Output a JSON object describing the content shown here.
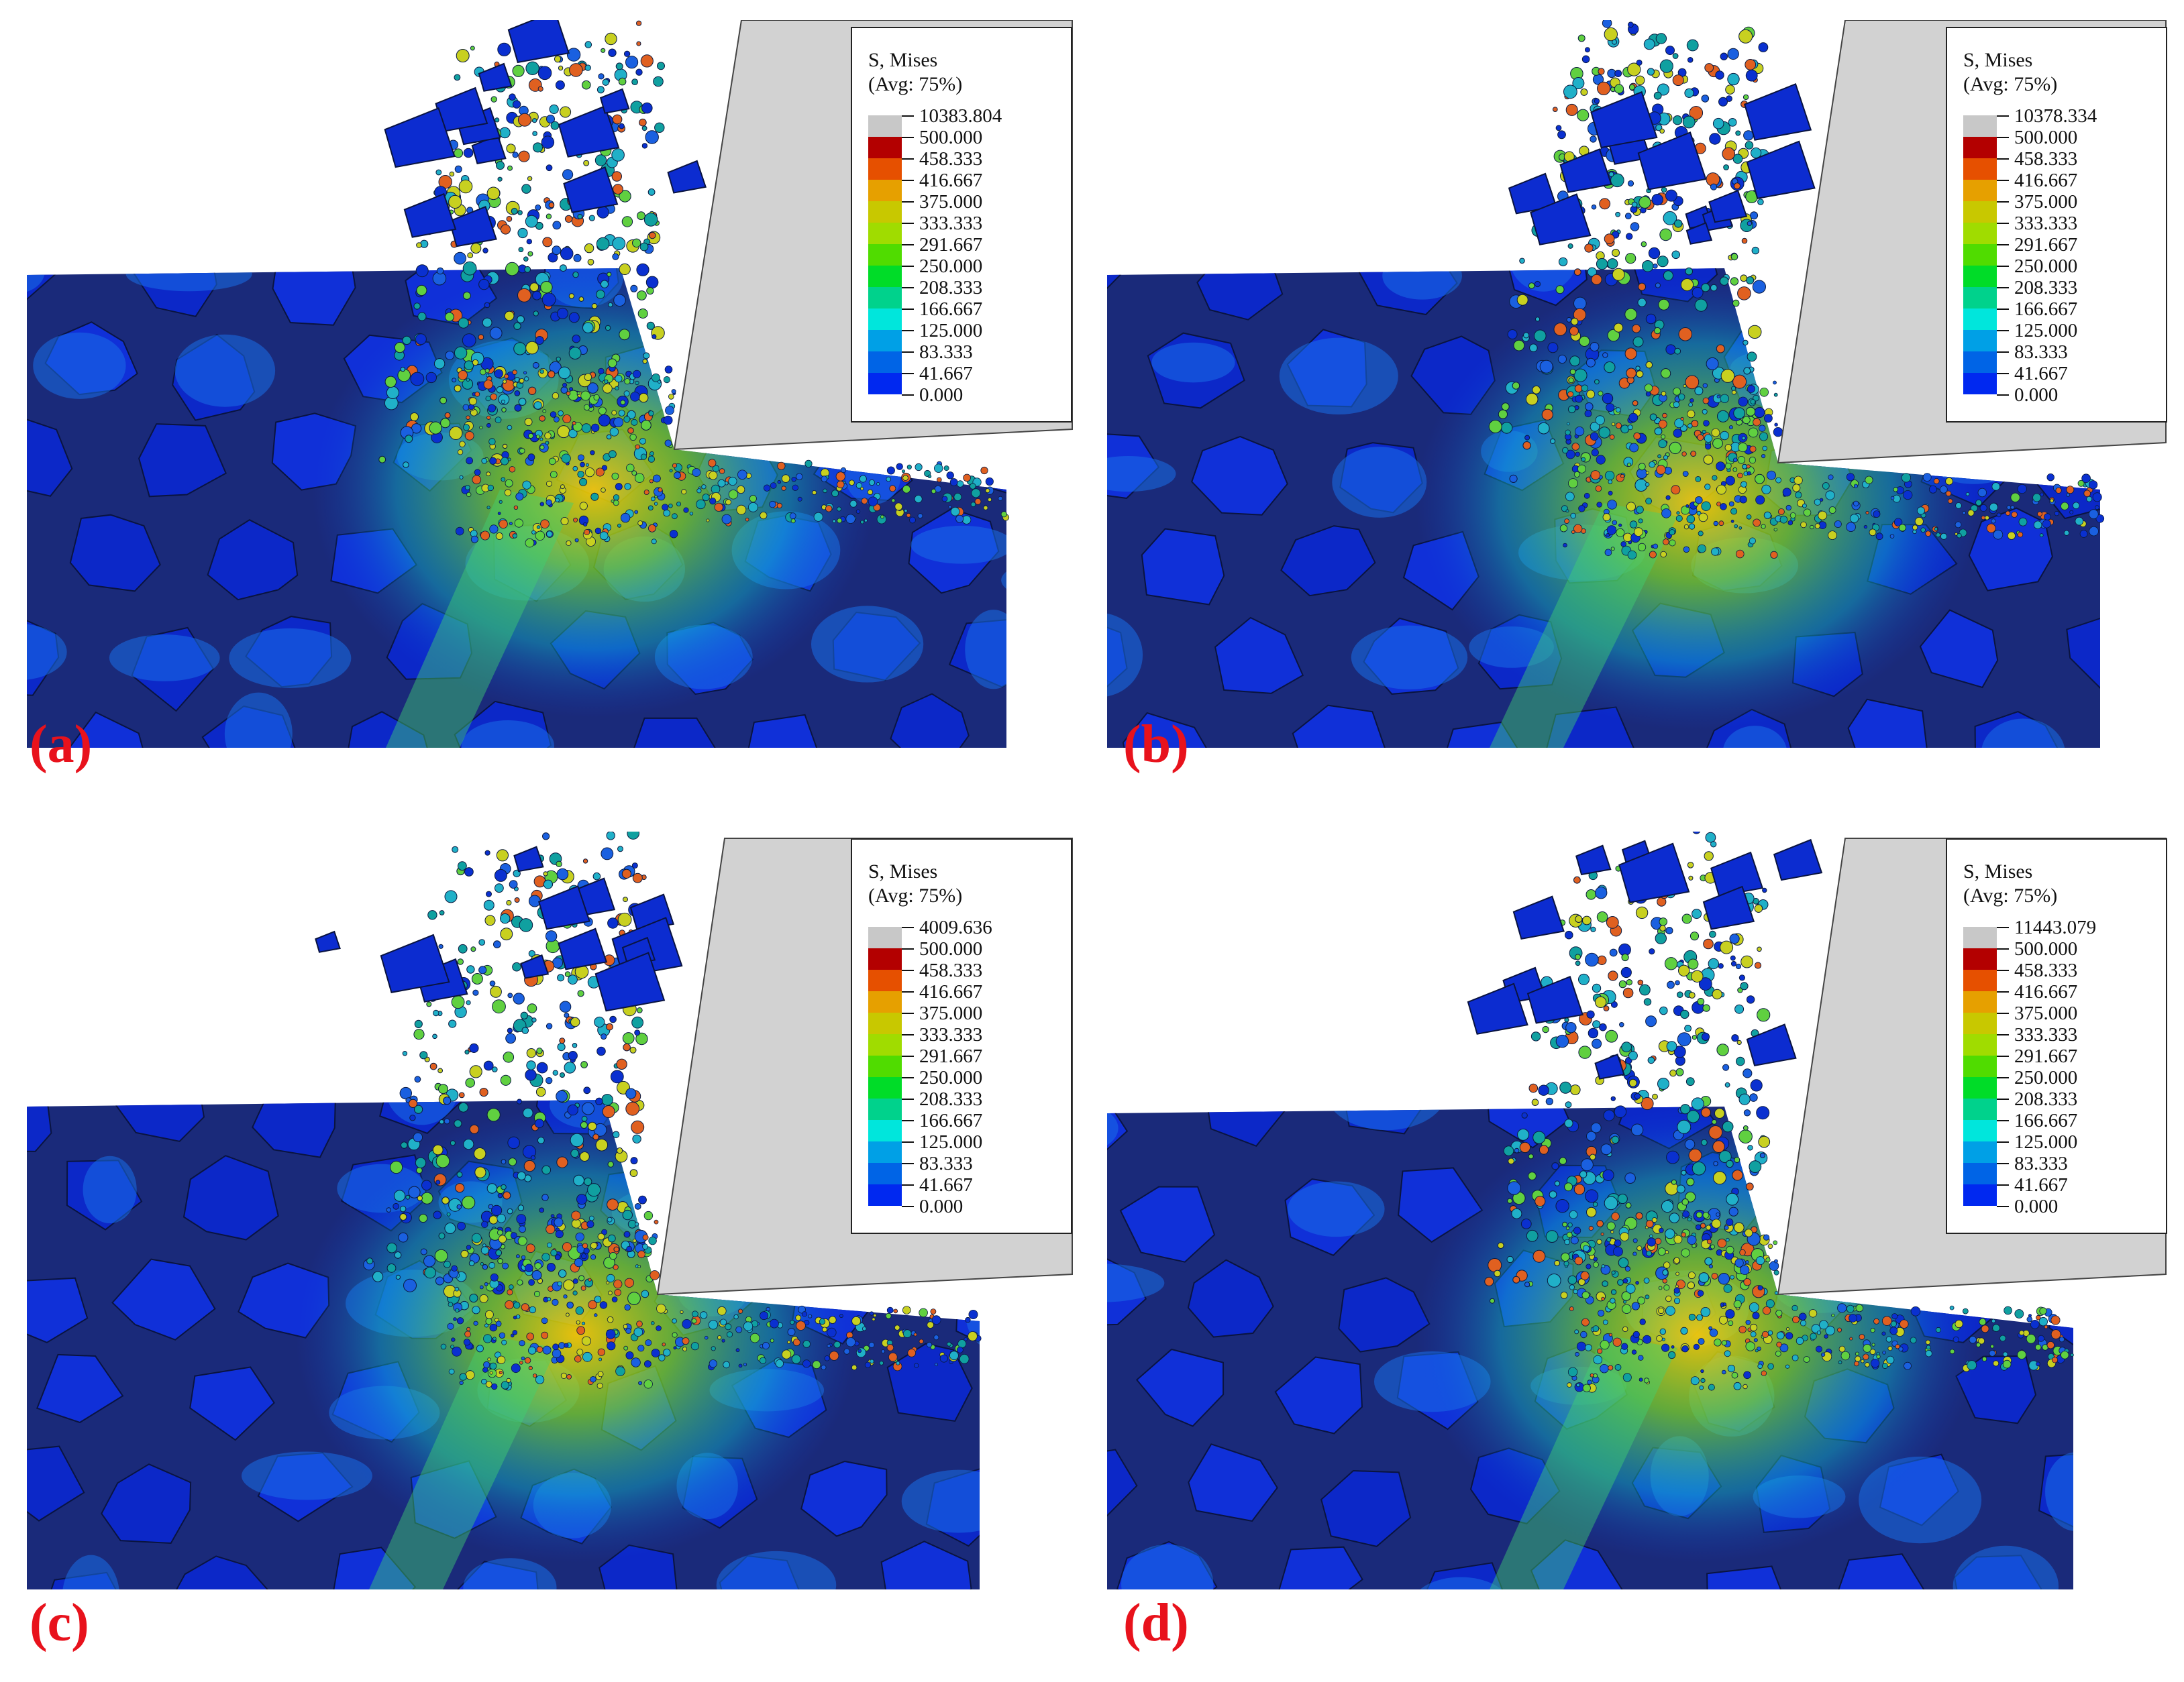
{
  "legend_title": [
    "S, Mises",
    "(Avg: 75%)"
  ],
  "legend_colors": [
    "#c8c8c8",
    "#b30000",
    "#e65000",
    "#e6a000",
    "#c8c800",
    "#a0dc00",
    "#50dc00",
    "#00dc28",
    "#00d28c",
    "#00e6dc",
    "#00a0e6",
    "#0064e6",
    "#0028f0"
  ],
  "legend_values_common": [
    "500.000",
    "458.333",
    "416.667",
    "375.000",
    "333.333",
    "291.667",
    "250.000",
    "208.333",
    "166.667",
    "125.000",
    "83.333",
    "41.667",
    "0.000"
  ],
  "panels": [
    {
      "label": "(a)",
      "max_value": "10383.804"
    },
    {
      "label": "(b)",
      "max_value": "10378.334"
    },
    {
      "label": "(c)",
      "max_value": "4009.636"
    },
    {
      "label": "(d)",
      "max_value": "11443.079"
    }
  ]
}
